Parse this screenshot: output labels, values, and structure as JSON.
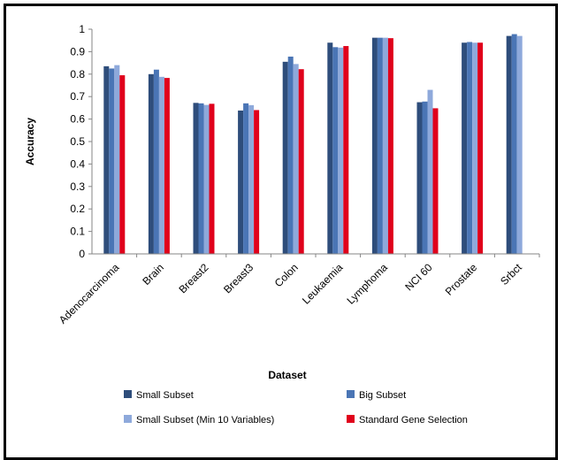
{
  "chart_data": {
    "type": "bar",
    "title": "",
    "xlabel": "Dataset",
    "ylabel": "Accuracy",
    "ylim": [
      0,
      1
    ],
    "yticks": [
      "0",
      "0.1",
      "0.2",
      "0.3",
      "0.4",
      "0.5",
      "0.6",
      "0.7",
      "0.8",
      "0.9",
      "1"
    ],
    "grid": false,
    "legend_position": "bottom",
    "categories": [
      "Adenocarcinoma",
      "Brain",
      "Breast2",
      "Breast3",
      "Colon",
      "Leukaemia",
      "Lymphoma",
      "NCI 60",
      "Prostate",
      "Srbct"
    ],
    "series": [
      {
        "name": "Small Subset",
        "color": "#2E4D7B",
        "values": [
          0.835,
          0.8,
          0.672,
          0.638,
          0.855,
          0.94,
          0.962,
          0.675,
          0.94,
          0.97
        ]
      },
      {
        "name": "Big Subset",
        "color": "#4A75B5",
        "values": [
          0.825,
          0.82,
          0.67,
          0.67,
          0.878,
          0.92,
          0.962,
          0.678,
          0.943,
          0.978
        ]
      },
      {
        "name": "Small Subset (Min 10 Variables)",
        "color": "#8EA9DB",
        "values": [
          0.84,
          0.788,
          0.663,
          0.662,
          0.845,
          0.918,
          0.962,
          0.73,
          0.94,
          0.97
        ]
      },
      {
        "name": "Standard Gene Selection",
        "color": "#E0001B",
        "values": [
          0.795,
          0.783,
          0.668,
          0.64,
          0.822,
          0.925,
          0.96,
          0.648,
          0.94,
          null
        ]
      }
    ]
  }
}
